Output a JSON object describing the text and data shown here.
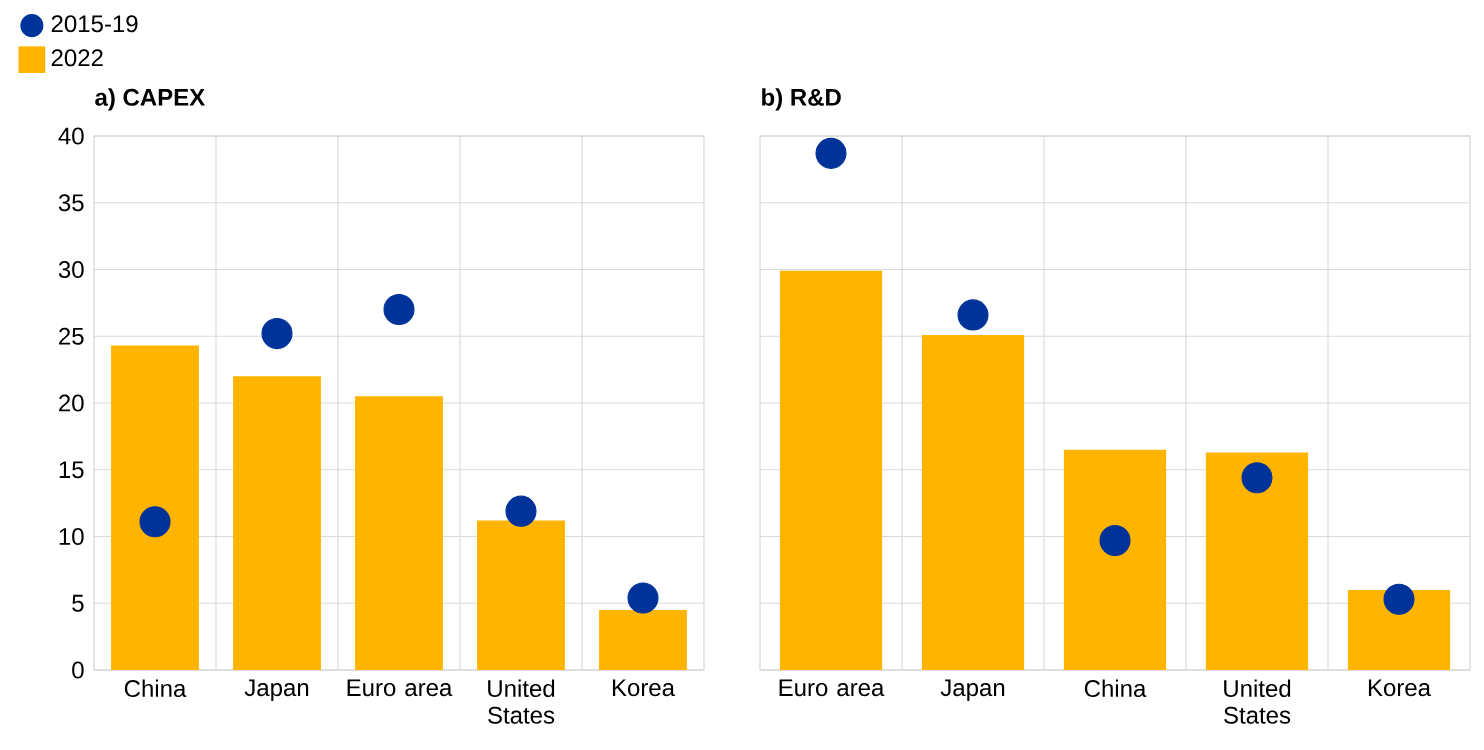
{
  "chart_data": [
    {
      "type": "bar",
      "title": "a) CAPEX",
      "categories": [
        "China",
        "Japan",
        "Euro area",
        "United States",
        "Korea"
      ],
      "series": [
        {
          "name": "2015-19",
          "type": "scatter",
          "color": "#003399",
          "values": [
            11.1,
            25.2,
            27.0,
            11.9,
            5.4
          ]
        },
        {
          "name": "2022",
          "color": "#ffb400",
          "values": [
            24.3,
            22.0,
            20.5,
            11.2,
            4.5
          ]
        }
      ],
      "ylim": [
        0,
        40
      ],
      "yticks": [
        0,
        5,
        10,
        15,
        20,
        25,
        30,
        35,
        40
      ],
      "grid": true,
      "legend": "top left",
      "marker": "circle"
    },
    {
      "type": "bar",
      "title": "b) R&D",
      "categories": [
        "Euro area",
        "Japan",
        "China",
        "United States",
        "Korea"
      ],
      "series": [
        {
          "type": "scatter",
          "color": "#003399",
          "values": [
            38.7,
            26.6,
            9.7,
            14.4,
            5.3
          ]
        },
        {
          "color": "#ffb400",
          "values": [
            29.9,
            25.1,
            16.5,
            16.3,
            6.0
          ]
        }
      ],
      "ylim": [
        0,
        40
      ],
      "yticks": [
        0,
        5,
        10,
        15,
        20,
        25,
        30,
        35,
        40
      ],
      "grid": true,
      "tick_labels": "x",
      "marker": "circle"
    }
  ]
}
